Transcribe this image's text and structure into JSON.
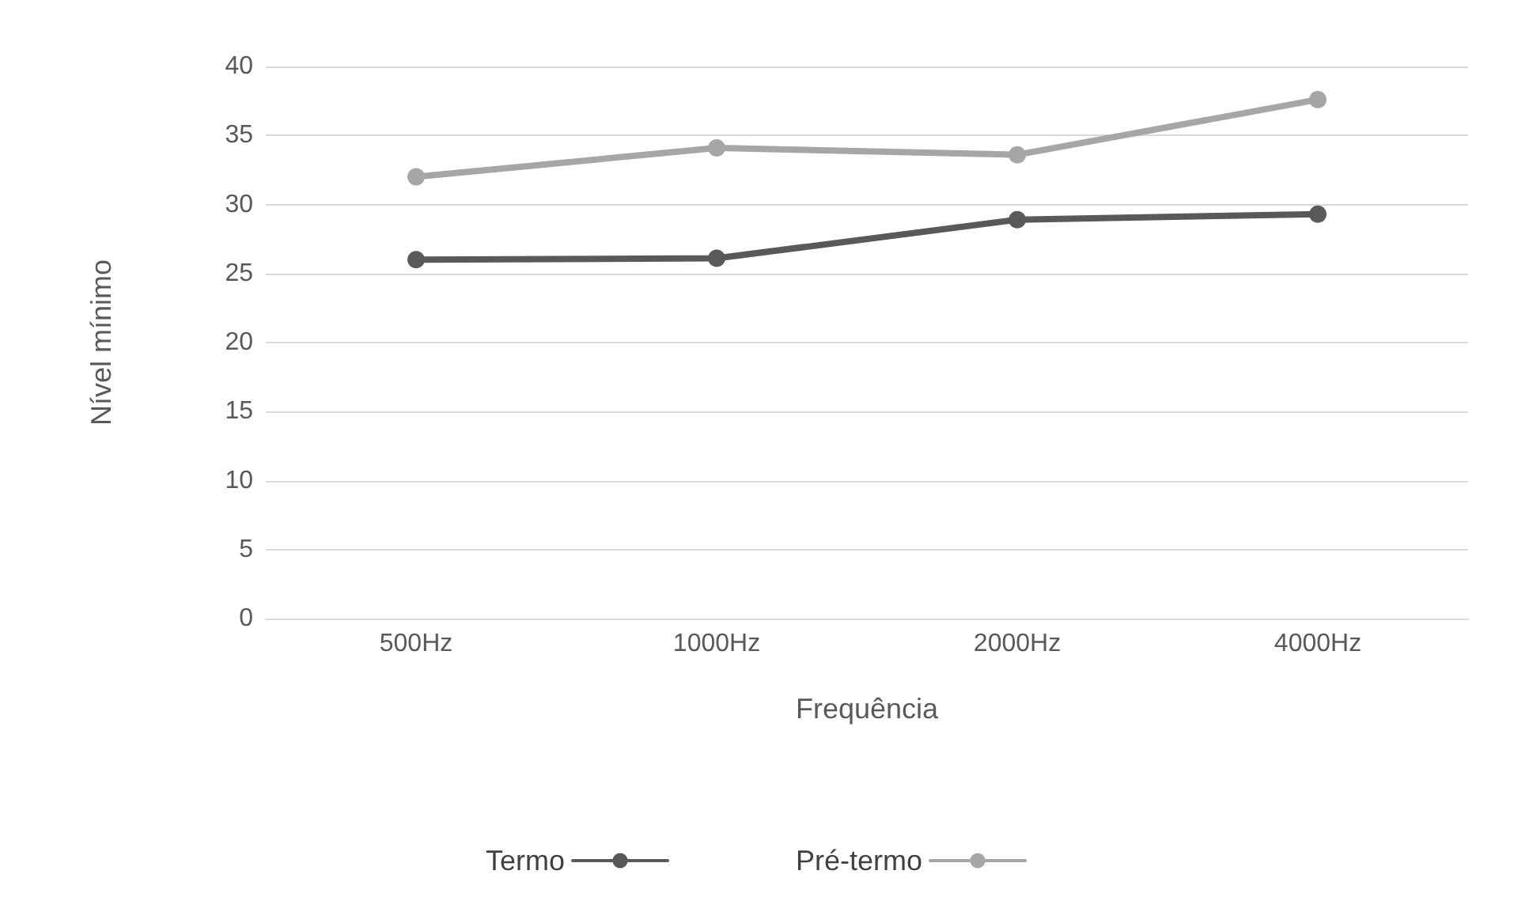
{
  "chart_data": {
    "type": "line",
    "xlabel": "Frequência",
    "ylabel": "Nível mínimo",
    "categories": [
      "500Hz",
      "1000Hz",
      "2000Hz",
      "4000Hz"
    ],
    "series": [
      {
        "name": "Termo",
        "color": "#595959",
        "values": [
          26.0,
          26.1,
          28.9,
          29.3
        ]
      },
      {
        "name": "Pré-termo",
        "color": "#a6a6a6",
        "values": [
          32.0,
          34.1,
          33.6,
          37.6
        ]
      }
    ],
    "ylim": [
      0,
      40
    ],
    "yticks": [
      0,
      5,
      10,
      15,
      20,
      25,
      30,
      35,
      40
    ],
    "grid": "y",
    "legend": "bottom",
    "marker": "circle",
    "line_style": "solid"
  }
}
